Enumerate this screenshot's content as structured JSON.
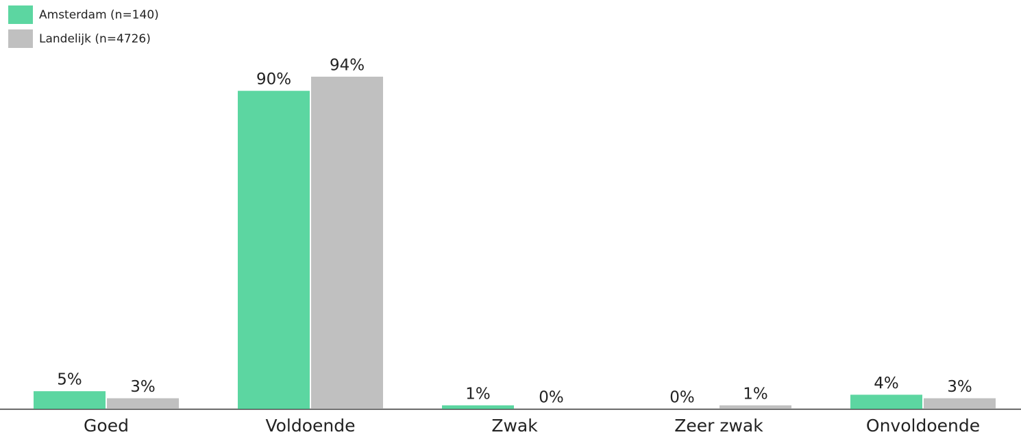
{
  "chart_data": {
    "type": "bar",
    "categories": [
      "Goed",
      "Voldoende",
      "Zwak",
      "Zeer zwak",
      "Onvoldoende"
    ],
    "series": [
      {
        "name": "Amsterdam (n=140)",
        "color": "#5cd6a1",
        "values": [
          5,
          90,
          1,
          0,
          4
        ],
        "value_labels": [
          "5%",
          "90%",
          "1%",
          "0%",
          "4%"
        ]
      },
      {
        "name": "Landelijk (n=4726)",
        "color": "#c0c0c0",
        "values": [
          3,
          94,
          0,
          1,
          3
        ],
        "value_labels": [
          "3%",
          "94%",
          "0%",
          "1%",
          "3%"
        ]
      }
    ],
    "ylim": [
      0,
      100
    ],
    "legend": "top-left"
  }
}
